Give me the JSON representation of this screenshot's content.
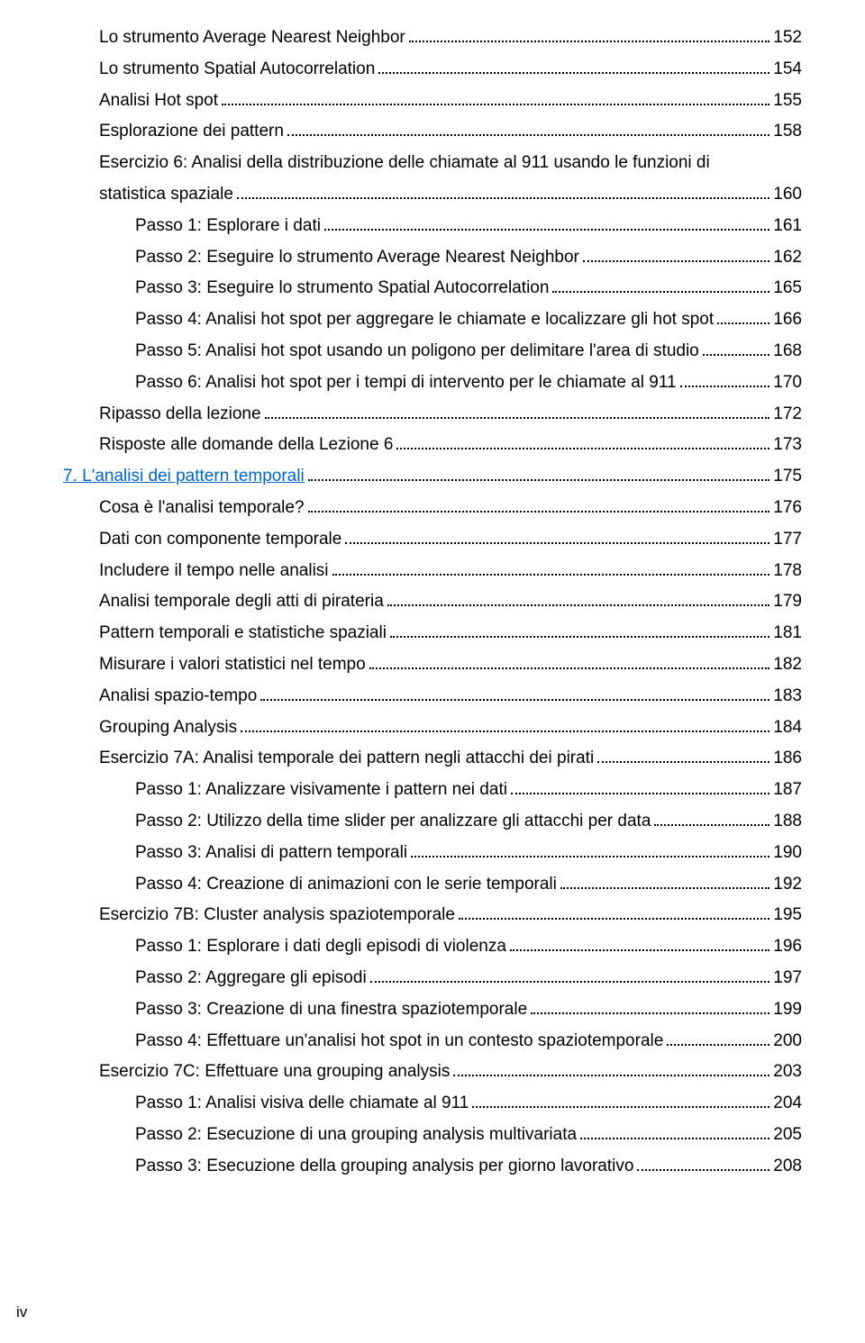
{
  "footer_page_label": "iv",
  "text_color": "#000000",
  "link_color": "#0066cc",
  "background_color": "#ffffff",
  "dot_color": "#000000",
  "font_size_pt": 14,
  "entries": [
    {
      "level": 1,
      "title": "Lo strumento Average Nearest Neighbor",
      "page": "152"
    },
    {
      "level": 1,
      "title": "Lo strumento Spatial Autocorrelation",
      "page": "154"
    },
    {
      "level": 1,
      "title": "Analisi Hot spot",
      "page": "155"
    },
    {
      "level": 1,
      "title": "Esplorazione dei pattern",
      "page": "158"
    },
    {
      "level": 1,
      "title": "Esercizio 6: Analisi della distribuzione delle chiamate al 911 usando le funzioni di statistica spaziale",
      "page": "160",
      "wrap": true
    },
    {
      "level": 2,
      "title": "Passo 1: Esplorare i dati",
      "page": "161"
    },
    {
      "level": 2,
      "title": "Passo 2: Eseguire lo strumento Average Nearest Neighbor",
      "page": "162"
    },
    {
      "level": 2,
      "title": "Passo 3: Eseguire lo strumento Spatial Autocorrelation",
      "page": "165"
    },
    {
      "level": 2,
      "title": "Passo 4: Analisi hot spot per aggregare le chiamate e localizzare gli hot spot",
      "page": "166"
    },
    {
      "level": 2,
      "title": "Passo 5: Analisi hot spot usando un poligono per delimitare l'area di studio",
      "page": "168"
    },
    {
      "level": 2,
      "title": "Passo 6: Analisi hot spot per i tempi di intervento per le chiamate al 911",
      "page": "170"
    },
    {
      "level": 1,
      "title": "Ripasso della lezione",
      "page": "172"
    },
    {
      "level": 1,
      "title": "Risposte alle domande della Lezione 6",
      "page": "173"
    },
    {
      "level": 0,
      "chapter_num": "7.",
      "title": "L'analisi dei pattern temporali",
      "page": "175",
      "is_chapter": true
    },
    {
      "level": 1,
      "title": "Cosa è l'analisi temporale?",
      "page": "176"
    },
    {
      "level": 1,
      "title": "Dati con componente temporale",
      "page": "177"
    },
    {
      "level": 1,
      "title": "Includere il tempo nelle analisi",
      "page": "178"
    },
    {
      "level": 1,
      "title": "Analisi temporale degli atti di pirateria",
      "page": "179"
    },
    {
      "level": 1,
      "title": "Pattern temporali e statistiche spaziali",
      "page": "181"
    },
    {
      "level": 1,
      "title": "Misurare i valori statistici nel tempo",
      "page": "182"
    },
    {
      "level": 1,
      "title": "Analisi spazio-tempo",
      "page": "183"
    },
    {
      "level": 1,
      "title": "Grouping Analysis",
      "page": "184"
    },
    {
      "level": 1,
      "title": "Esercizio 7A: Analisi temporale dei pattern negli attacchi dei pirati",
      "page": "186"
    },
    {
      "level": 2,
      "title": "Passo 1: Analizzare visivamente i pattern nei dati",
      "page": "187"
    },
    {
      "level": 2,
      "title": "Passo 2: Utilizzo della time slider per analizzare gli attacchi per data",
      "page": "188"
    },
    {
      "level": 2,
      "title": "Passo 3: Analisi di pattern temporali",
      "page": "190"
    },
    {
      "level": 2,
      "title": "Passo 4: Creazione di animazioni con le serie temporali",
      "page": "192"
    },
    {
      "level": 1,
      "title": "Esercizio 7B: Cluster analysis spaziotemporale",
      "page": "195"
    },
    {
      "level": 2,
      "title": "Passo 1: Esplorare i dati degli episodi di violenza",
      "page": "196"
    },
    {
      "level": 2,
      "title": "Passo 2: Aggregare gli episodi",
      "page": "197"
    },
    {
      "level": 2,
      "title": "Passo 3: Creazione di una finestra spaziotemporale",
      "page": "199"
    },
    {
      "level": 2,
      "title": "Passo 4: Effettuare un'analisi hot spot in un contesto spaziotemporale",
      "page": "200"
    },
    {
      "level": 1,
      "title": "Esercizio 7C: Effettuare una grouping analysis",
      "page": "203"
    },
    {
      "level": 2,
      "title": "Passo 1: Analisi visiva delle chiamate al 911",
      "page": "204"
    },
    {
      "level": 2,
      "title": "Passo 2: Esecuzione di una grouping analysis multivariata",
      "page": "205"
    },
    {
      "level": 2,
      "title": "Passo 3: Esecuzione della grouping analysis per giorno lavorativo",
      "page": "208"
    }
  ]
}
